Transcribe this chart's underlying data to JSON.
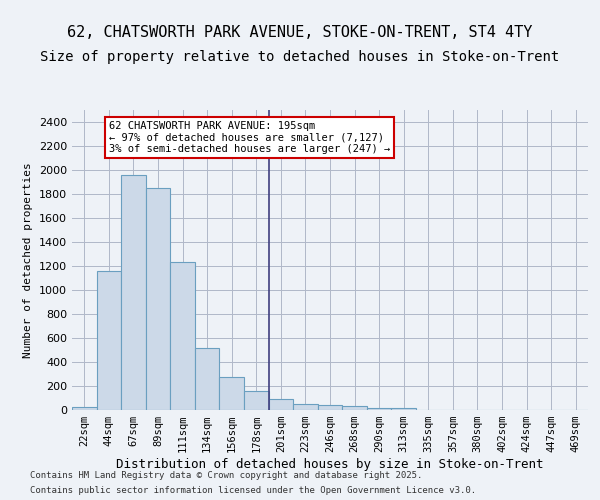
{
  "title": "62, CHATSWORTH PARK AVENUE, STOKE-ON-TRENT, ST4 4TY",
  "subtitle": "Size of property relative to detached houses in Stoke-on-Trent",
  "xlabel": "Distribution of detached houses by size in Stoke-on-Trent",
  "ylabel": "Number of detached properties",
  "categories": [
    "22sqm",
    "44sqm",
    "67sqm",
    "89sqm",
    "111sqm",
    "134sqm",
    "156sqm",
    "178sqm",
    "201sqm",
    "223sqm",
    "246sqm",
    "268sqm",
    "290sqm",
    "313sqm",
    "335sqm",
    "357sqm",
    "380sqm",
    "402sqm",
    "424sqm",
    "447sqm",
    "469sqm"
  ],
  "values": [
    25,
    1160,
    1960,
    1850,
    1230,
    515,
    275,
    155,
    90,
    50,
    40,
    35,
    20,
    15,
    0,
    0,
    0,
    0,
    0,
    0,
    0
  ],
  "bar_color": "#ccd9e8",
  "bar_edge_color": "#6a9fc0",
  "vline_x": 8,
  "annotation_text": "62 CHATSWORTH PARK AVENUE: 195sqm\n← 97% of detached houses are smaller (7,127)\n3% of semi-detached houses are larger (247) →",
  "annotation_box_color": "#ffffff",
  "annotation_box_edge_color": "#cc0000",
  "footer1": "Contains HM Land Registry data © Crown copyright and database right 2025.",
  "footer2": "Contains public sector information licensed under the Open Government Licence v3.0.",
  "bg_color": "#eef2f7",
  "plot_bg_color": "#eef2f7",
  "title_fontsize": 11,
  "subtitle_fontsize": 10,
  "ylim": [
    0,
    2500
  ],
  "yticks": [
    0,
    200,
    400,
    600,
    800,
    1000,
    1200,
    1400,
    1600,
    1800,
    2000,
    2200,
    2400
  ]
}
